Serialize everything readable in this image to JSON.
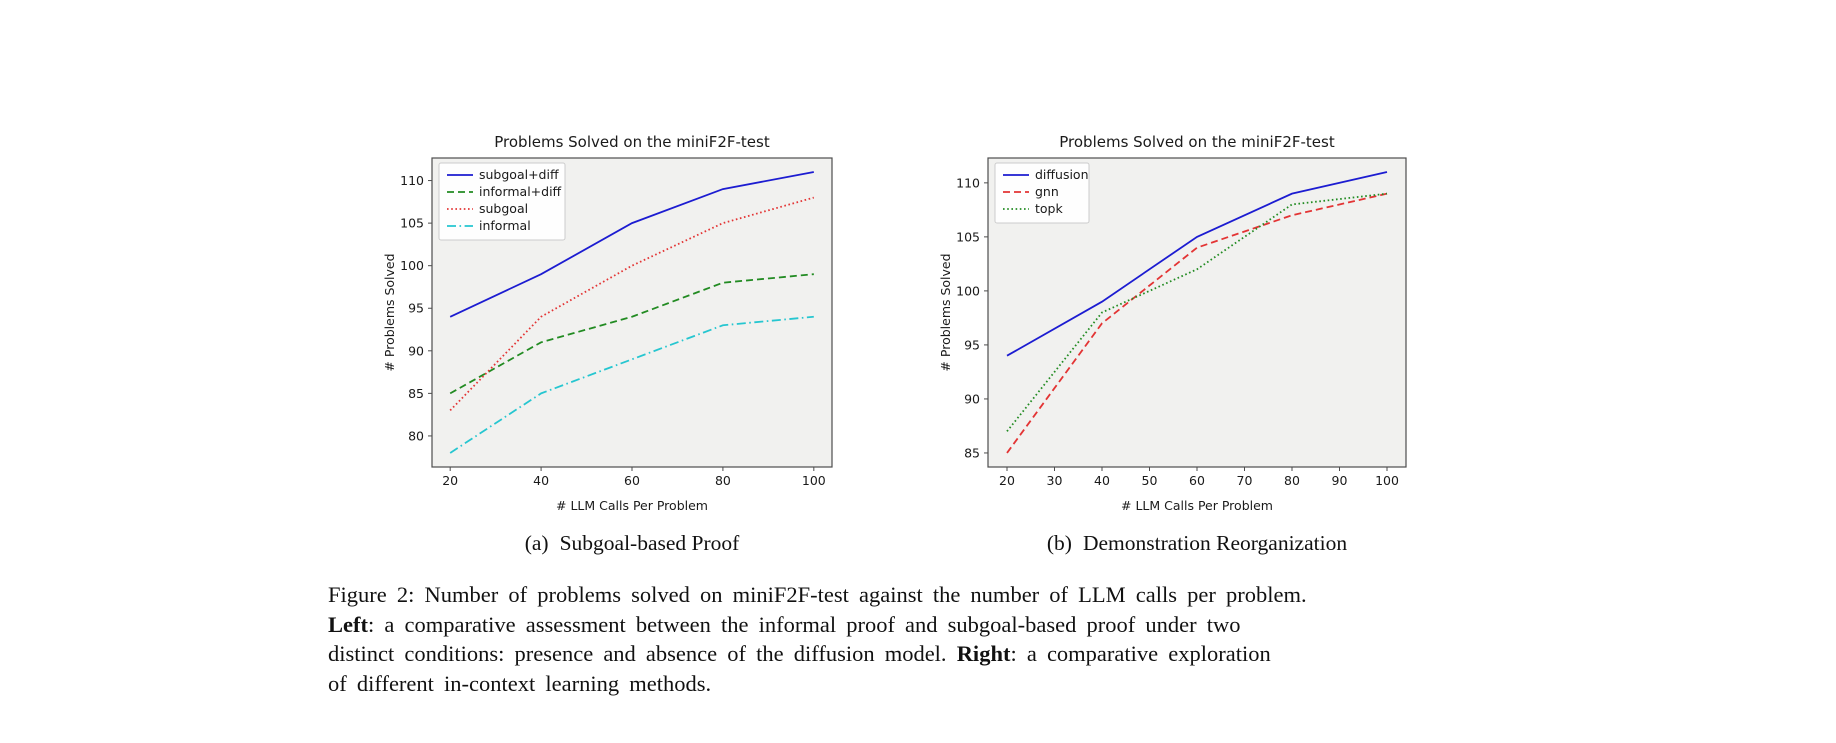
{
  "page": {
    "background": "#ffffff"
  },
  "figure": {
    "subcaptions": [
      {
        "label": "(a)",
        "text": "Subgoal-based Proof"
      },
      {
        "label": "(b)",
        "text": "Demonstration Reorganization"
      }
    ],
    "caption_lines": [
      [
        {
          "text": "Figure 2: Number of problems solved on miniF2F-test against the number of LLM calls per problem.",
          "bold": false
        }
      ],
      [
        {
          "text": "Left",
          "bold": true
        },
        {
          "text": ": a comparative assessment between the informal proof and subgoal-based proof under two",
          "bold": false
        }
      ],
      [
        {
          "text": "distinct conditions: presence and absence of the diffusion model. ",
          "bold": false
        },
        {
          "text": "Right",
          "bold": true
        },
        {
          "text": ": a comparative exploration",
          "bold": false
        }
      ],
      [
        {
          "text": "of different in-context learning methods.",
          "bold": false
        }
      ]
    ]
  },
  "chart_data": [
    {
      "type": "line",
      "title": "Problems Solved on the miniF2F-test",
      "xlabel": "# LLM Calls Per Problem",
      "ylabel": "# Problems Solved",
      "x": [
        20,
        40,
        60,
        80,
        100
      ],
      "xticks": [
        20,
        40,
        60,
        80,
        100
      ],
      "yticks": [
        80,
        85,
        90,
        95,
        100,
        105,
        110
      ],
      "xlim": [
        16,
        104
      ],
      "ylim": [
        76.35,
        112.65
      ],
      "grid": false,
      "legend_position": "upper left",
      "plot_bg": "#f1f1ef",
      "series": [
        {
          "name": "subgoal+diff",
          "color": "#1c1cd1",
          "style": "solid",
          "values": [
            94,
            99,
            105,
            109,
            111
          ]
        },
        {
          "name": "informal+diff",
          "color": "#228b22",
          "style": "dashed",
          "values": [
            85,
            91,
            94,
            98,
            99
          ]
        },
        {
          "name": "subgoal",
          "color": "#e33434",
          "style": "dotted",
          "values": [
            83,
            94,
            100,
            105,
            108
          ]
        },
        {
          "name": "informal",
          "color": "#26c6d0",
          "style": "dashdot",
          "values": [
            78,
            85,
            89,
            93,
            94
          ]
        }
      ]
    },
    {
      "type": "line",
      "title": "Problems Solved on the miniF2F-test",
      "xlabel": "# LLM Calls Per Problem",
      "ylabel": "# Problems Solved",
      "x": [
        20,
        40,
        60,
        80,
        100
      ],
      "xticks": [
        20,
        30,
        40,
        50,
        60,
        70,
        80,
        90,
        100
      ],
      "yticks": [
        85,
        90,
        95,
        100,
        105,
        110
      ],
      "xlim": [
        16,
        104
      ],
      "ylim": [
        83.7,
        112.3
      ],
      "grid": false,
      "legend_position": "upper left",
      "plot_bg": "#f1f1ef",
      "series": [
        {
          "name": "diffusion",
          "color": "#1c1cd1",
          "style": "solid",
          "values": [
            94,
            99,
            105,
            109,
            111
          ]
        },
        {
          "name": "gnn",
          "color": "#e33434",
          "style": "dashed",
          "values": [
            85,
            97,
            104,
            107,
            109
          ]
        },
        {
          "name": "topk",
          "color": "#228b22",
          "style": "dotted",
          "values": [
            87,
            98,
            102,
            108,
            109
          ]
        }
      ]
    }
  ]
}
